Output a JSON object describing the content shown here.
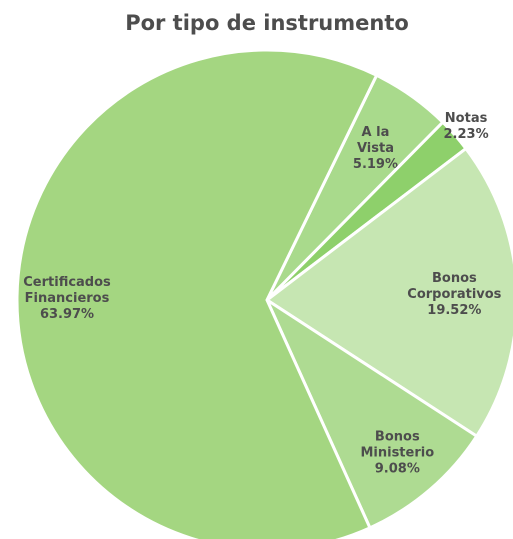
{
  "chart_data": {
    "type": "pie",
    "title": "Por tipo de instrumento",
    "categories": [
      "A la Vista",
      "Notas",
      "Bonos Corporativos",
      "Bonos Ministerio",
      "Certificados Financieros"
    ],
    "values": [
      5.19,
      2.23,
      19.52,
      9.08,
      63.97
    ],
    "value_labels": [
      "5.19%",
      "2.23%",
      "19.52%",
      "9.08%",
      "63.97%"
    ],
    "colors": [
      "#a9da8c",
      "#8ed06b",
      "#c6e6b2",
      "#aedb92",
      "#a4d681"
    ]
  }
}
